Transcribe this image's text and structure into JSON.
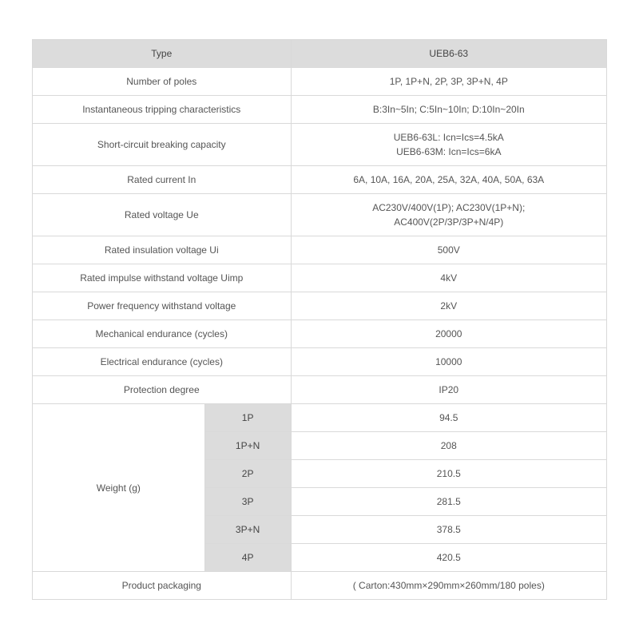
{
  "table": {
    "header": {
      "label": "Type",
      "value": "UEB6-63"
    },
    "rows": [
      {
        "label": "Number of poles",
        "value": "1P, 1P+N, 2P, 3P, 3P+N, 4P"
      },
      {
        "label": "Instantaneous tripping characteristics",
        "value": "B:3In~5In; C:5In~10In; D:10In~20In"
      },
      {
        "label": "Short-circuit breaking capacity",
        "value": "UEB6-63L: Icn=Ics=4.5kA\nUEB6-63M: Icn=Ics=6kA"
      },
      {
        "label": "Rated current In",
        "value": "6A, 10A, 16A, 20A, 25A, 32A, 40A, 50A, 63A"
      },
      {
        "label": "Rated voltage Ue",
        "value": "AC230V/400V(1P); AC230V(1P+N);\nAC400V(2P/3P/3P+N/4P)"
      },
      {
        "label": "Rated insulation voltage Ui",
        "value": "500V"
      },
      {
        "label": "Rated impulse withstand voltage Uimp",
        "value": "4kV"
      },
      {
        "label": "Power frequency withstand voltage",
        "value": "2kV"
      },
      {
        "label": "Mechanical endurance (cycles)",
        "value": "20000"
      },
      {
        "label": "Electrical endurance (cycles)",
        "value": "10000"
      },
      {
        "label": "Protection degree",
        "value": "IP20"
      }
    ],
    "weight": {
      "label": "Weight (g)",
      "items": [
        {
          "sub": "1P",
          "value": "94.5"
        },
        {
          "sub": "1P+N",
          "value": "208"
        },
        {
          "sub": "2P",
          "value": "210.5"
        },
        {
          "sub": "3P",
          "value": "281.5"
        },
        {
          "sub": "3P+N",
          "value": "378.5"
        },
        {
          "sub": "4P",
          "value": "420.5"
        }
      ]
    },
    "footer": {
      "label": "Product packaging",
      "value": "( Carton:430mm×290mm×260mm/180 poles)"
    }
  },
  "style": {
    "header_bg": "#dcdcdc",
    "border_color": "#d9d9d9",
    "text_color": "#555555",
    "font_size": 12,
    "row_padding": 8
  }
}
